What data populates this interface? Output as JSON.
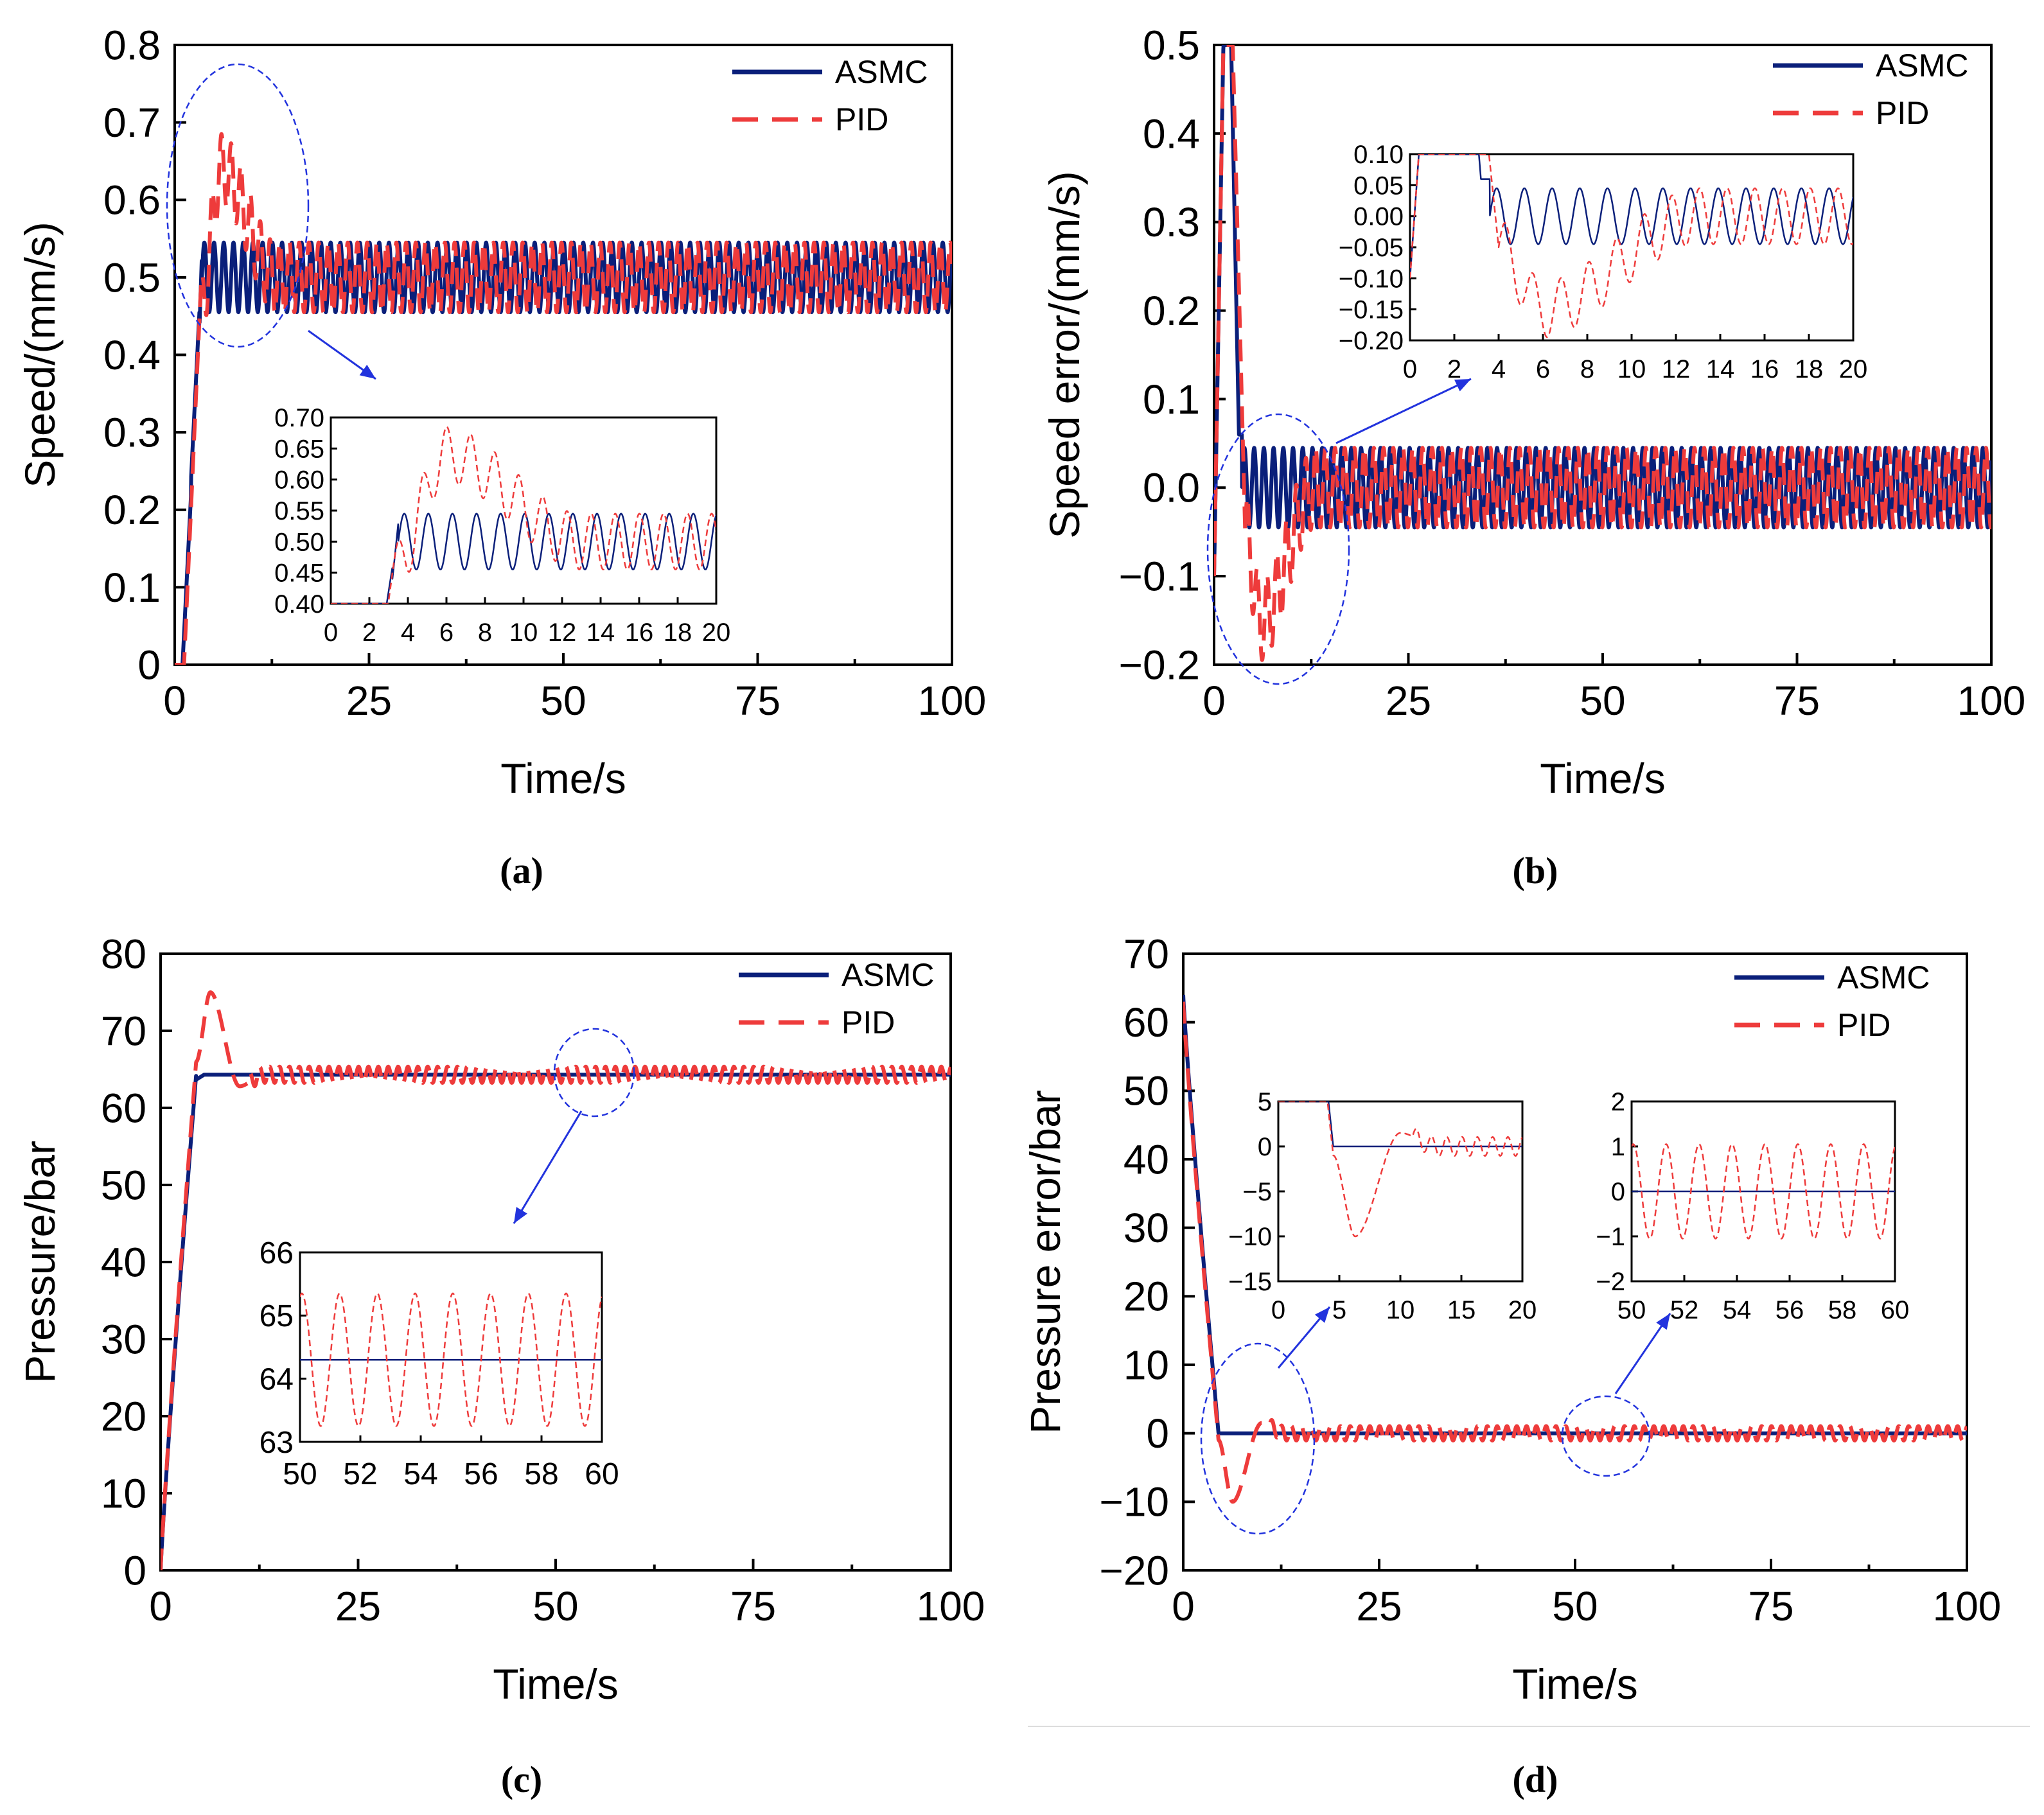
{
  "colors": {
    "asmc": "#0a1f7a",
    "pid": "#ee3b3b",
    "ellipse": "#2233dd",
    "arrow": "#2233dd",
    "axis": "#000000"
  },
  "chart_data": [
    {
      "panel": "a",
      "type": "line",
      "caption": "(a)",
      "xlabel": "Time/s",
      "ylabel": "Speed/(mm/s)",
      "xlim": [
        0,
        100
      ],
      "ylim": [
        0,
        0.8
      ],
      "xticks": [
        "0",
        "25",
        "50",
        "75",
        "100"
      ],
      "yticks": [
        "0",
        "0.1",
        "0.2",
        "0.3",
        "0.4",
        "0.5",
        "0.6",
        "0.7",
        "0.8"
      ],
      "legend": [
        "ASMC",
        "PID"
      ],
      "series": [
        {
          "name": "ASMC",
          "kind": "asmc_speed",
          "setpoint": 0.5,
          "amplitude": 0.045,
          "period": 1.25,
          "rise_start": 1.0,
          "rise_end": 3.2
        },
        {
          "name": "PID",
          "kind": "pid_speed",
          "setpoint": 0.5,
          "amplitude": 0.045,
          "period": 1.25,
          "peak": 0.69,
          "peak_time": 6.0
        }
      ],
      "inset": {
        "xlim": [
          0,
          20
        ],
        "ylim": [
          0.4,
          0.7
        ],
        "xticks": [
          "0",
          "2",
          "4",
          "6",
          "8",
          "10",
          "12",
          "14",
          "16",
          "18",
          "20"
        ],
        "yticks": [
          "0.40",
          "0.45",
          "0.50",
          "0.55",
          "0.60",
          "0.65",
          "0.70"
        ]
      }
    },
    {
      "panel": "b",
      "type": "line",
      "caption": "(b)",
      "xlabel": "Time/s",
      "ylabel": "Speed error/(mm/s)",
      "xlim": [
        0,
        100
      ],
      "ylim": [
        -0.2,
        0.5
      ],
      "xticks": [
        "0",
        "25",
        "50",
        "75",
        "100"
      ],
      "yticks": [
        "−0.2",
        "−0.1",
        "0.0",
        "0.1",
        "0.2",
        "0.3",
        "0.4",
        "0.5"
      ],
      "legend": [
        "ASMC",
        "PID"
      ],
      "series": [
        {
          "name": "ASMC",
          "kind": "asmc_speed_err",
          "amplitude": 0.045,
          "period": 1.25
        },
        {
          "name": "PID",
          "kind": "pid_speed_err",
          "amplitude": 0.045,
          "period": 1.25,
          "trough": -0.19,
          "trough_time": 6.0
        }
      ],
      "inset": {
        "xlim": [
          0,
          20
        ],
        "ylim": [
          -0.2,
          0.1
        ],
        "xticks": [
          "0",
          "2",
          "4",
          "6",
          "8",
          "10",
          "12",
          "14",
          "16",
          "18",
          "20"
        ],
        "yticks": [
          "−0.20",
          "−0.15",
          "−0.10",
          "−0.05",
          "0.00",
          "0.05",
          "0.10"
        ]
      }
    },
    {
      "panel": "c",
      "type": "line",
      "caption": "(c)",
      "xlabel": "Time/s",
      "ylabel": "Pressure/bar",
      "xlim": [
        0,
        100
      ],
      "ylim": [
        0,
        80
      ],
      "xticks": [
        "0",
        "25",
        "50",
        "75",
        "100"
      ],
      "yticks": [
        "0",
        "10",
        "20",
        "30",
        "40",
        "50",
        "60",
        "70",
        "80"
      ],
      "legend": [
        "ASMC",
        "PID"
      ],
      "series": [
        {
          "name": "ASMC",
          "kind": "asmc_pressure",
          "setpoint": 64.3,
          "rise_end": 4.5
        },
        {
          "name": "PID",
          "kind": "pid_pressure",
          "setpoint": 64.3,
          "amplitude": 1.05,
          "period": 1.25,
          "peak": 75,
          "peak_time": 6.3
        }
      ],
      "inset": {
        "xlim": [
          50,
          60
        ],
        "ylim": [
          63,
          66
        ],
        "xticks": [
          "50",
          "52",
          "54",
          "56",
          "58",
          "60"
        ],
        "yticks": [
          "63",
          "64",
          "65",
          "66"
        ]
      }
    },
    {
      "panel": "d",
      "type": "line",
      "caption": "(d)",
      "xlabel": "Time/s",
      "ylabel": "Pressure error/bar",
      "xlim": [
        0,
        100
      ],
      "ylim": [
        -20,
        70
      ],
      "xticks": [
        "0",
        "25",
        "50",
        "75",
        "100"
      ],
      "yticks": [
        "−20",
        "−10",
        "0",
        "10",
        "20",
        "30",
        "40",
        "50",
        "60",
        "70"
      ],
      "legend": [
        "ASMC",
        "PID"
      ],
      "series": [
        {
          "name": "ASMC",
          "kind": "asmc_pressure_err"
        },
        {
          "name": "PID",
          "kind": "pid_pressure_err",
          "amplitude": 1.05,
          "period": 1.25,
          "trough": -10,
          "trough_time": 6.3
        }
      ],
      "insets": [
        {
          "xlim": [
            0,
            20
          ],
          "ylim": [
            -15,
            5
          ],
          "xticks": [
            "0",
            "5",
            "10",
            "15",
            "20"
          ],
          "yticks": [
            "−15",
            "−10",
            "−5",
            "0",
            "5"
          ]
        },
        {
          "xlim": [
            50,
            60
          ],
          "ylim": [
            -2,
            2
          ],
          "xticks": [
            "50",
            "52",
            "54",
            "56",
            "58",
            "60"
          ],
          "yticks": [
            "−2",
            "−1",
            "0",
            "1",
            "2"
          ]
        }
      ]
    }
  ]
}
